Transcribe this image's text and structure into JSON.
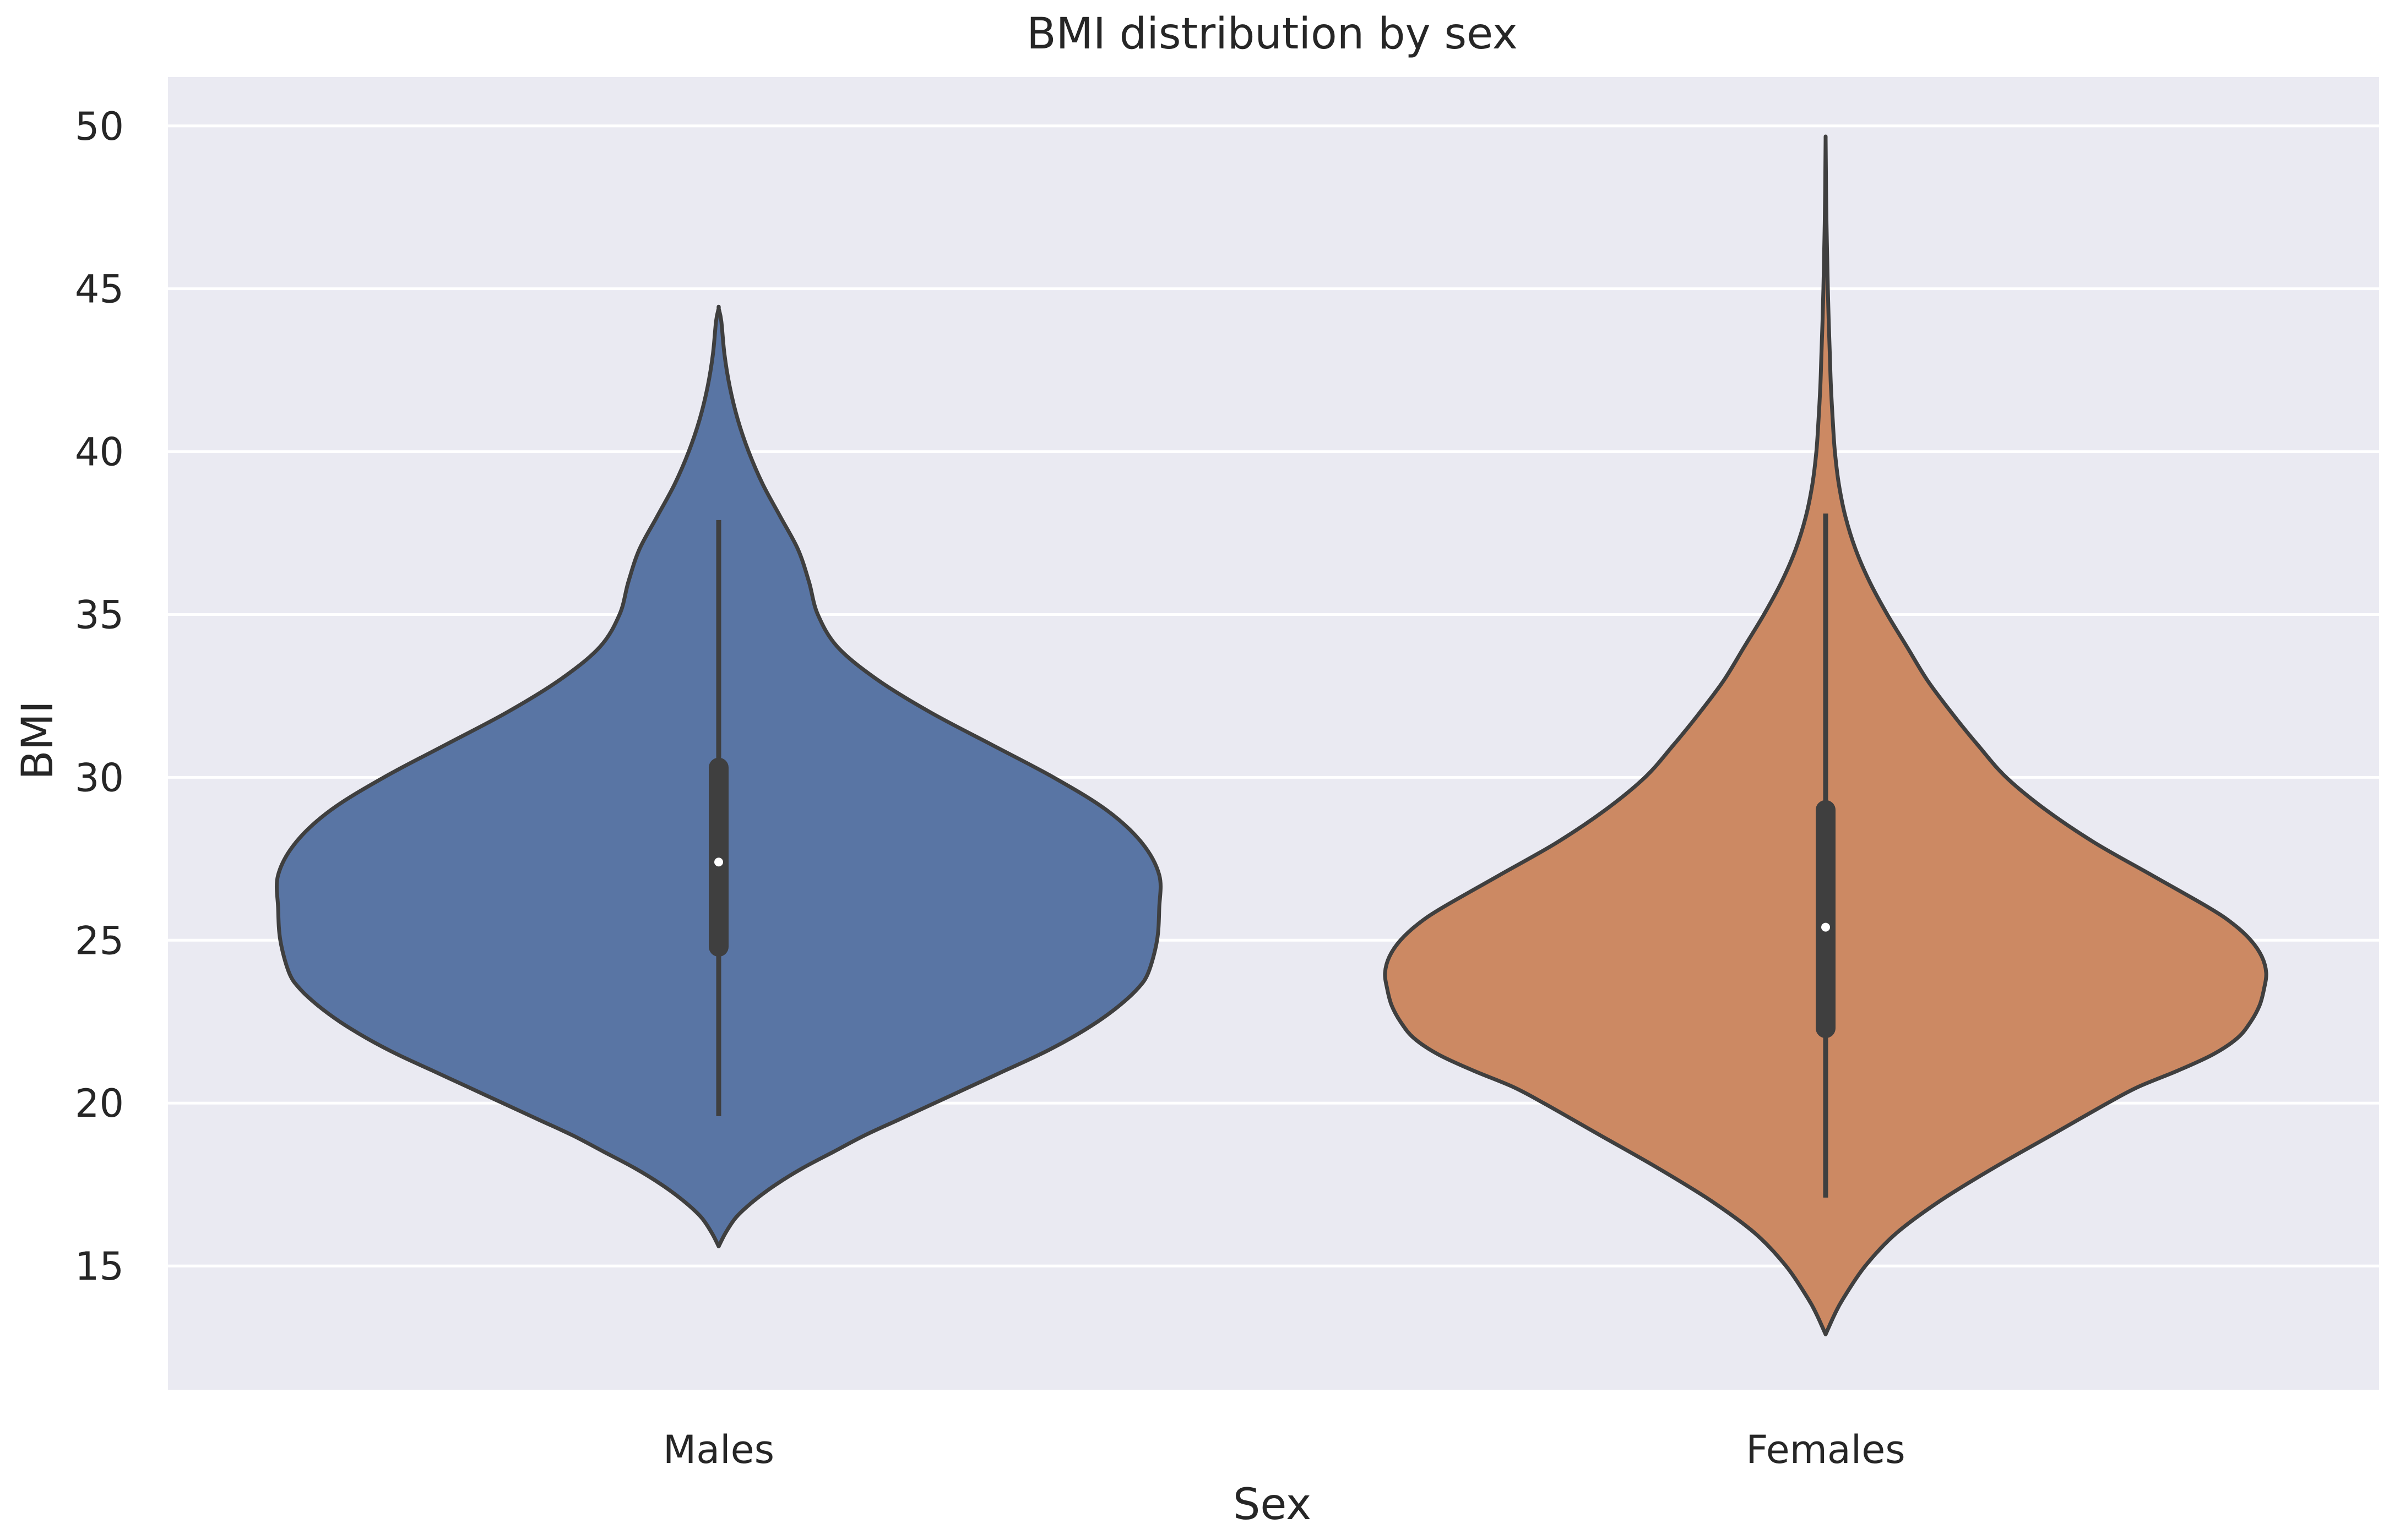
{
  "chart_data": {
    "type": "violin",
    "title": "BMI distribution by sex",
    "xlabel": "Sex",
    "ylabel": "BMI",
    "ylim": [
      11.2,
      51.5
    ],
    "yticks": [
      15,
      20,
      25,
      30,
      35,
      40,
      45,
      50
    ],
    "grid": true,
    "background_color": "#eaeaf2",
    "grid_color": "#ffffff",
    "outline_color": "#3f3f3f",
    "categories": [
      "Males",
      "Females"
    ],
    "series": [
      {
        "name": "Males",
        "color": "#5975a4",
        "min": 15.6,
        "max": 44.4,
        "box": {
          "q1": 24.8,
          "median": 27.4,
          "q3": 30.3,
          "whisker_low": 19.6,
          "whisker_high": 37.9
        },
        "density": [
          [
            15.6,
            0.0
          ],
          [
            16.0,
            0.015
          ],
          [
            16.5,
            0.04
          ],
          [
            17.0,
            0.08
          ],
          [
            17.5,
            0.13
          ],
          [
            18.0,
            0.19
          ],
          [
            18.5,
            0.26
          ],
          [
            19.0,
            0.33
          ],
          [
            19.5,
            0.41
          ],
          [
            20.0,
            0.49
          ],
          [
            20.5,
            0.57
          ],
          [
            21.0,
            0.65
          ],
          [
            21.5,
            0.73
          ],
          [
            22.0,
            0.8
          ],
          [
            22.5,
            0.86
          ],
          [
            23.0,
            0.91
          ],
          [
            23.5,
            0.95
          ],
          [
            24.0,
            0.975
          ],
          [
            25.0,
            0.995
          ],
          [
            26.0,
            1.0
          ],
          [
            27.0,
            1.0
          ],
          [
            28.0,
            0.96
          ],
          [
            29.0,
            0.88
          ],
          [
            30.0,
            0.76
          ],
          [
            31.0,
            0.62
          ],
          [
            32.0,
            0.48
          ],
          [
            33.0,
            0.36
          ],
          [
            34.0,
            0.27
          ],
          [
            35.0,
            0.225
          ],
          [
            36.0,
            0.205
          ],
          [
            37.0,
            0.18
          ],
          [
            38.0,
            0.14
          ],
          [
            39.0,
            0.1
          ],
          [
            40.0,
            0.068
          ],
          [
            41.0,
            0.043
          ],
          [
            42.0,
            0.025
          ],
          [
            43.0,
            0.013
          ],
          [
            44.0,
            0.006
          ],
          [
            44.4,
            0.0
          ]
        ]
      },
      {
        "name": "Females",
        "color": "#cc8963",
        "min": 12.9,
        "max": 49.6,
        "box": {
          "q1": 22.3,
          "median": 25.4,
          "q3": 29.0,
          "whisker_low": 17.1,
          "whisker_high": 38.1
        },
        "density": [
          [
            12.9,
            0.0
          ],
          [
            13.5,
            0.02
          ],
          [
            14.0,
            0.04
          ],
          [
            15.0,
            0.09
          ],
          [
            16.0,
            0.16
          ],
          [
            17.0,
            0.26
          ],
          [
            18.0,
            0.38
          ],
          [
            19.0,
            0.51
          ],
          [
            20.0,
            0.64
          ],
          [
            20.5,
            0.71
          ],
          [
            21.0,
            0.8
          ],
          [
            21.5,
            0.88
          ],
          [
            22.0,
            0.935
          ],
          [
            22.5,
            0.965
          ],
          [
            23.0,
            0.985
          ],
          [
            23.5,
            0.995
          ],
          [
            24.0,
            1.0
          ],
          [
            24.5,
            0.99
          ],
          [
            25.0,
            0.965
          ],
          [
            25.5,
            0.925
          ],
          [
            26.0,
            0.87
          ],
          [
            27.0,
            0.74
          ],
          [
            28.0,
            0.61
          ],
          [
            29.0,
            0.5
          ],
          [
            30.0,
            0.41
          ],
          [
            31.0,
            0.345
          ],
          [
            32.0,
            0.285
          ],
          [
            33.0,
            0.23
          ],
          [
            34.0,
            0.185
          ],
          [
            35.0,
            0.14
          ],
          [
            36.0,
            0.1
          ],
          [
            37.0,
            0.068
          ],
          [
            38.0,
            0.045
          ],
          [
            39.0,
            0.03
          ],
          [
            40.0,
            0.021
          ],
          [
            41.0,
            0.016
          ],
          [
            42.0,
            0.012
          ],
          [
            43.0,
            0.0095
          ],
          [
            44.0,
            0.007
          ],
          [
            45.0,
            0.005
          ],
          [
            46.0,
            0.0035
          ],
          [
            47.0,
            0.002
          ],
          [
            48.0,
            0.001
          ],
          [
            49.0,
            0.0004
          ],
          [
            49.6,
            0.0
          ]
        ]
      }
    ]
  }
}
